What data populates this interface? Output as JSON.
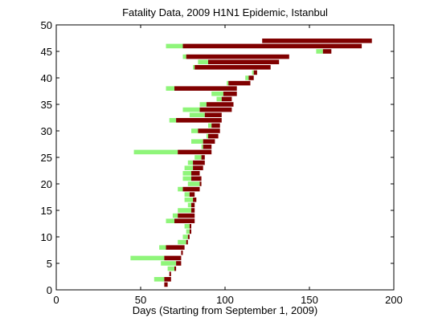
{
  "chart_data": {
    "type": "bar",
    "orientation": "horizontal",
    "title": "Fatality Data, 2009 H1N1 Epidemic, Istanbul",
    "xlabel": "Days (Starting from September 1, 2009)",
    "ylabel": "",
    "xlim": [
      0,
      200
    ],
    "ylim": [
      0,
      50
    ],
    "x_ticks": [
      0,
      50,
      100,
      150,
      200
    ],
    "y_ticks": [
      0,
      5,
      10,
      15,
      20,
      25,
      30,
      35,
      40,
      45,
      50
    ],
    "grid": false,
    "legend": "none",
    "colors": {
      "light": "#8ff57a",
      "dark": "#800000"
    },
    "records": [
      {
        "y": 1,
        "segments": [
          [
            64,
            66,
            "dark"
          ]
        ]
      },
      {
        "y": 2,
        "segments": [
          [
            58,
            64,
            "light"
          ],
          [
            64,
            68,
            "dark"
          ]
        ]
      },
      {
        "y": 3,
        "segments": [
          [
            67,
            68,
            "dark"
          ]
        ]
      },
      {
        "y": 4,
        "segments": [
          [
            66,
            70,
            "light"
          ],
          [
            70,
            71,
            "dark"
          ]
        ]
      },
      {
        "y": 5,
        "segments": [
          [
            62,
            71,
            "light"
          ],
          [
            71,
            74,
            "dark"
          ]
        ]
      },
      {
        "y": 6,
        "segments": [
          [
            44,
            64,
            "light"
          ],
          [
            64,
            74,
            "dark"
          ]
        ]
      },
      {
        "y": 7,
        "segments": [
          [
            74,
            75,
            "dark"
          ]
        ]
      },
      {
        "y": 8,
        "segments": [
          [
            61,
            65,
            "light"
          ],
          [
            65,
            76,
            "dark"
          ]
        ]
      },
      {
        "y": 9,
        "segments": [
          [
            72,
            77,
            "light"
          ],
          [
            77,
            78,
            "dark"
          ]
        ]
      },
      {
        "y": 10,
        "segments": [
          [
            75,
            78,
            "light"
          ],
          [
            78,
            79,
            "dark"
          ]
        ]
      },
      {
        "y": 11,
        "segments": [
          [
            77,
            79,
            "light"
          ],
          [
            79,
            80,
            "dark"
          ]
        ]
      },
      {
        "y": 12,
        "segments": [
          [
            76,
            79,
            "light"
          ],
          [
            79,
            80,
            "dark"
          ]
        ]
      },
      {
        "y": 13,
        "segments": [
          [
            65,
            70,
            "light"
          ],
          [
            70,
            82,
            "dark"
          ]
        ]
      },
      {
        "y": 14,
        "segments": [
          [
            69,
            72,
            "light"
          ],
          [
            72,
            82,
            "dark"
          ]
        ]
      },
      {
        "y": 15,
        "segments": [
          [
            72,
            80,
            "light"
          ],
          [
            80,
            82,
            "dark"
          ]
        ]
      },
      {
        "y": 16,
        "segments": [
          [
            78,
            80,
            "light"
          ],
          [
            80,
            82,
            "dark"
          ]
        ]
      },
      {
        "y": 17,
        "segments": [
          [
            76,
            81,
            "light"
          ],
          [
            81,
            83,
            "dark"
          ]
        ]
      },
      {
        "y": 18,
        "segments": [
          [
            76,
            79,
            "light"
          ],
          [
            79,
            82,
            "dark"
          ]
        ]
      },
      {
        "y": 19,
        "segments": [
          [
            72,
            75,
            "light"
          ],
          [
            75,
            85,
            "dark"
          ]
        ]
      },
      {
        "y": 20,
        "segments": [
          [
            78,
            85,
            "light"
          ],
          [
            85,
            86,
            "dark"
          ]
        ]
      },
      {
        "y": 21,
        "segments": [
          [
            75,
            80,
            "light"
          ],
          [
            80,
            86,
            "dark"
          ]
        ]
      },
      {
        "y": 22,
        "segments": [
          [
            75,
            80,
            "light"
          ],
          [
            80,
            85,
            "dark"
          ]
        ]
      },
      {
        "y": 23,
        "segments": [
          [
            76,
            81,
            "light"
          ],
          [
            81,
            87,
            "dark"
          ]
        ]
      },
      {
        "y": 24,
        "segments": [
          [
            78,
            81,
            "light"
          ],
          [
            81,
            88,
            "dark"
          ]
        ]
      },
      {
        "y": 25,
        "segments": [
          [
            82,
            86,
            "light"
          ],
          [
            86,
            88,
            "dark"
          ]
        ]
      },
      {
        "y": 26,
        "segments": [
          [
            46,
            72,
            "light"
          ],
          [
            72,
            92,
            "dark"
          ]
        ]
      },
      {
        "y": 27,
        "segments": [
          [
            86,
            87,
            "light"
          ],
          [
            87,
            92,
            "dark"
          ]
        ]
      },
      {
        "y": 28,
        "segments": [
          [
            80,
            87,
            "light"
          ],
          [
            87,
            94,
            "dark"
          ]
        ]
      },
      {
        "y": 29,
        "segments": [
          [
            89,
            90,
            "light"
          ],
          [
            90,
            96,
            "dark"
          ]
        ]
      },
      {
        "y": 30,
        "segments": [
          [
            80,
            84,
            "light"
          ],
          [
            84,
            97,
            "dark"
          ]
        ]
      },
      {
        "y": 31,
        "segments": [
          [
            90,
            92,
            "light"
          ],
          [
            92,
            97,
            "dark"
          ]
        ]
      },
      {
        "y": 32,
        "segments": [
          [
            67,
            71,
            "light"
          ],
          [
            71,
            98,
            "dark"
          ]
        ]
      },
      {
        "y": 33,
        "segments": [
          [
            79,
            88,
            "light"
          ],
          [
            88,
            98,
            "dark"
          ]
        ]
      },
      {
        "y": 34,
        "segments": [
          [
            75,
            85,
            "light"
          ],
          [
            85,
            104,
            "dark"
          ]
        ]
      },
      {
        "y": 35,
        "segments": [
          [
            85,
            89,
            "light"
          ],
          [
            89,
            105,
            "dark"
          ]
        ]
      },
      {
        "y": 36,
        "segments": [
          [
            95,
            98,
            "light"
          ],
          [
            98,
            104,
            "dark"
          ]
        ]
      },
      {
        "y": 37,
        "segments": [
          [
            92,
            99,
            "light"
          ],
          [
            99,
            107,
            "dark"
          ]
        ]
      },
      {
        "y": 38,
        "segments": [
          [
            65,
            70,
            "light"
          ],
          [
            70,
            107,
            "dark"
          ]
        ]
      },
      {
        "y": 39,
        "segments": [
          [
            101,
            102,
            "light"
          ],
          [
            102,
            115,
            "dark"
          ]
        ]
      },
      {
        "y": 40,
        "segments": [
          [
            112,
            114,
            "light"
          ],
          [
            114,
            117,
            "dark"
          ]
        ]
      },
      {
        "y": 41,
        "segments": [
          [
            116,
            117,
            "light"
          ],
          [
            117,
            119,
            "dark"
          ]
        ]
      },
      {
        "y": 42,
        "segments": [
          [
            81,
            82,
            "light"
          ],
          [
            82,
            127,
            "dark"
          ]
        ]
      },
      {
        "y": 43,
        "segments": [
          [
            84,
            90,
            "light"
          ],
          [
            90,
            132,
            "dark"
          ]
        ]
      },
      {
        "y": 44,
        "segments": [
          [
            75,
            77,
            "light"
          ],
          [
            77,
            138,
            "dark"
          ]
        ]
      },
      {
        "y": 45,
        "segments": [
          [
            154,
            158,
            "light"
          ],
          [
            158,
            163,
            "dark"
          ]
        ]
      },
      {
        "y": 46,
        "segments": [
          [
            65,
            75,
            "light"
          ],
          [
            75,
            181,
            "dark"
          ]
        ]
      },
      {
        "y": 47,
        "segments": [
          [
            122,
            187,
            "dark"
          ]
        ]
      }
    ]
  }
}
